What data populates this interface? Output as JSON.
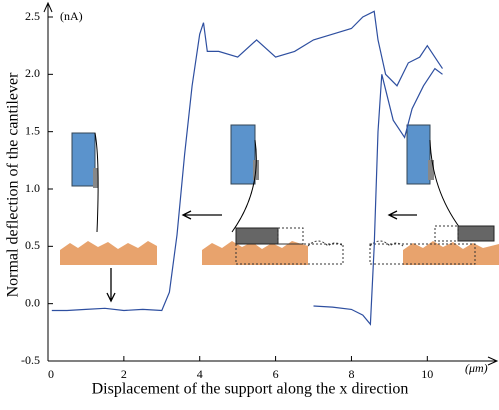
{
  "chart_data": {
    "type": "line",
    "y_label": "Normal deflection of the cantilever",
    "x_label": "Displacement of the support along the x direction",
    "y_unit": "(nA)",
    "x_unit": "(μm)",
    "xlim": [
      0,
      11.6
    ],
    "ylim": [
      -0.5,
      2.5
    ],
    "xticks": [
      0,
      2,
      4,
      6,
      8,
      10
    ],
    "yticks": [
      -0.5,
      {
        "value": 0,
        "label": "0.0"
      },
      0.5,
      {
        "value": 1,
        "label": "1.0"
      },
      1.5,
      {
        "value": 2,
        "label": "2.0"
      },
      2.5
    ],
    "series": [
      {
        "color": "#2e4fa0",
        "x": [
          0.1,
          0.5,
          1,
          1.5,
          2,
          2.5,
          3,
          3.2,
          3.4,
          3.6,
          3.8,
          4,
          4.1,
          4.2,
          4.5,
          5,
          5.5,
          6,
          6.5,
          7,
          7.5,
          8,
          8.3,
          8.6,
          8.7,
          8.9,
          9.2,
          9.5,
          9.8,
          10,
          10.3,
          10.4
        ],
        "values": [
          -0.06,
          -0.06,
          -0.05,
          -0.04,
          -0.06,
          -0.05,
          -0.06,
          0.1,
          0.6,
          1.3,
          1.9,
          2.35,
          2.45,
          2.2,
          2.2,
          2.15,
          2.3,
          2.15,
          2.2,
          2.3,
          2.35,
          2.4,
          2.5,
          2.55,
          2.3,
          2.0,
          1.9,
          2.1,
          2.15,
          2.25,
          2.1,
          2.05
        ]
      },
      {
        "color": "#2e4fa0",
        "x": [
          7,
          7.5,
          8,
          8.3,
          8.5,
          8.6,
          8.7,
          8.8,
          9.1,
          9.4,
          9.6,
          9.9,
          10.2,
          10.4
        ],
        "values": [
          -0.02,
          -0.03,
          -0.05,
          -0.1,
          -0.18,
          0.5,
          1.5,
          2.0,
          1.6,
          1.45,
          1.7,
          1.9,
          2.05,
          2.0
        ]
      }
    ]
  }
}
